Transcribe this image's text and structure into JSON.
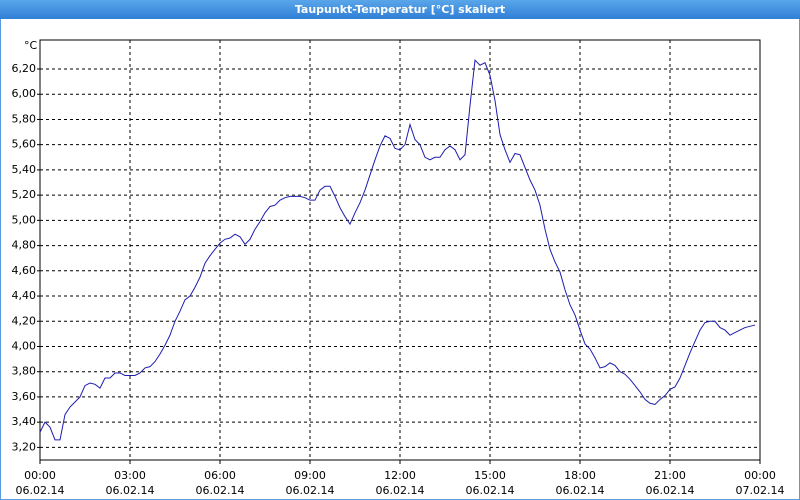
{
  "chart_data": {
    "type": "line",
    "title": "Taupunkt-Temperatur [°C] skaliert",
    "y_unit": "°C",
    "color": "#1c1cb0",
    "grid": true,
    "xlim": [
      0,
      1440
    ],
    "xticks": [
      {
        "value": 0,
        "label": "00:00"
      },
      {
        "value": 180,
        "label": "03:00"
      },
      {
        "value": 360,
        "label": "06:00"
      },
      {
        "value": 540,
        "label": "09:00"
      },
      {
        "value": 720,
        "label": "12:00"
      },
      {
        "value": 900,
        "label": "15:00"
      },
      {
        "value": 1080,
        "label": "18:00"
      },
      {
        "value": 1260,
        "label": "21:00"
      },
      {
        "value": 1440,
        "label": "00:00"
      }
    ],
    "xtick_dates": [
      "06.02.14",
      "06.02.14",
      "06.02.14",
      "06.02.14",
      "06.02.14",
      "06.02.14",
      "06.02.14",
      "06.02.14",
      "07.02.14"
    ],
    "ylim": [
      3.1,
      6.43
    ],
    "yticks": [
      {
        "value": 3.2,
        "label": "3,20"
      },
      {
        "value": 3.4,
        "label": "3,40"
      },
      {
        "value": 3.6,
        "label": "3,60"
      },
      {
        "value": 3.8,
        "label": "3,80"
      },
      {
        "value": 4.0,
        "label": "4,00"
      },
      {
        "value": 4.2,
        "label": "4,20"
      },
      {
        "value": 4.4,
        "label": "4,40"
      },
      {
        "value": 4.6,
        "label": "4,60"
      },
      {
        "value": 4.8,
        "label": "4,80"
      },
      {
        "value": 5.0,
        "label": "5,00"
      },
      {
        "value": 5.2,
        "label": "5,20"
      },
      {
        "value": 5.4,
        "label": "5,40"
      },
      {
        "value": 5.6,
        "label": "5,60"
      },
      {
        "value": 5.8,
        "label": "5,80"
      },
      {
        "value": 6.0,
        "label": "6,00"
      },
      {
        "value": 6.2,
        "label": "6,20"
      }
    ],
    "x": [
      0,
      10,
      20,
      30,
      40,
      50,
      60,
      70,
      80,
      90,
      100,
      110,
      120,
      130,
      140,
      150,
      160,
      170,
      180,
      190,
      200,
      210,
      220,
      230,
      240,
      250,
      260,
      270,
      280,
      290,
      300,
      310,
      320,
      330,
      340,
      350,
      360,
      370,
      380,
      390,
      400,
      410,
      420,
      430,
      440,
      450,
      460,
      470,
      480,
      490,
      500,
      510,
      520,
      530,
      540,
      550,
      560,
      570,
      580,
      590,
      600,
      610,
      620,
      630,
      640,
      650,
      660,
      670,
      680,
      690,
      700,
      710,
      720,
      730,
      740,
      750,
      760,
      770,
      780,
      790,
      800,
      810,
      820,
      830,
      840,
      850,
      860,
      870,
      880,
      890,
      900,
      910,
      920,
      930,
      940,
      950,
      960,
      970,
      980,
      990,
      1000,
      1010,
      1020,
      1030,
      1040,
      1050,
      1060,
      1070,
      1080,
      1090,
      1100,
      1110,
      1120,
      1130,
      1140,
      1150,
      1160,
      1170,
      1180,
      1190,
      1200,
      1210,
      1220,
      1230,
      1240,
      1250,
      1260,
      1270,
      1280,
      1290,
      1300,
      1310,
      1320,
      1330,
      1340,
      1350,
      1360,
      1370,
      1380,
      1390,
      1400,
      1410,
      1420,
      1430
    ],
    "values": [
      3.32,
      3.4,
      3.36,
      3.26,
      3.26,
      3.46,
      3.52,
      3.56,
      3.6,
      3.69,
      3.71,
      3.7,
      3.67,
      3.75,
      3.75,
      3.79,
      3.79,
      3.77,
      3.77,
      3.77,
      3.79,
      3.83,
      3.84,
      3.88,
      3.94,
      4.01,
      4.09,
      4.2,
      4.28,
      4.37,
      4.4,
      4.47,
      4.55,
      4.66,
      4.72,
      4.77,
      4.82,
      4.85,
      4.86,
      4.89,
      4.87,
      4.81,
      4.85,
      4.93,
      4.99,
      5.06,
      5.11,
      5.12,
      5.16,
      5.18,
      5.19,
      5.19,
      5.19,
      5.18,
      5.16,
      5.16,
      5.24,
      5.27,
      5.27,
      5.19,
      5.1,
      5.03,
      4.97,
      5.06,
      5.14,
      5.24,
      5.36,
      5.48,
      5.59,
      5.67,
      5.65,
      5.57,
      5.56,
      5.6,
      5.76,
      5.64,
      5.6,
      5.5,
      5.48,
      5.5,
      5.5,
      5.56,
      5.59,
      5.56,
      5.48,
      5.52,
      5.91,
      6.27,
      6.23,
      6.25,
      6.15,
      5.95,
      5.68,
      5.56,
      5.46,
      5.53,
      5.52,
      5.42,
      5.32,
      5.24,
      5.12,
      4.93,
      4.77,
      4.67,
      4.59,
      4.45,
      4.33,
      4.25,
      4.13,
      4.02,
      3.98,
      3.91,
      3.83,
      3.84,
      3.87,
      3.85,
      3.8,
      3.78,
      3.74,
      3.69,
      3.64,
      3.58,
      3.55,
      3.54,
      3.58,
      3.61,
      3.66,
      3.68,
      3.75,
      3.85,
      3.95,
      4.04,
      4.13,
      4.19,
      4.2,
      4.2,
      4.15,
      4.13,
      4.09,
      4.11,
      4.13,
      4.15,
      4.16,
      4.17
    ]
  }
}
